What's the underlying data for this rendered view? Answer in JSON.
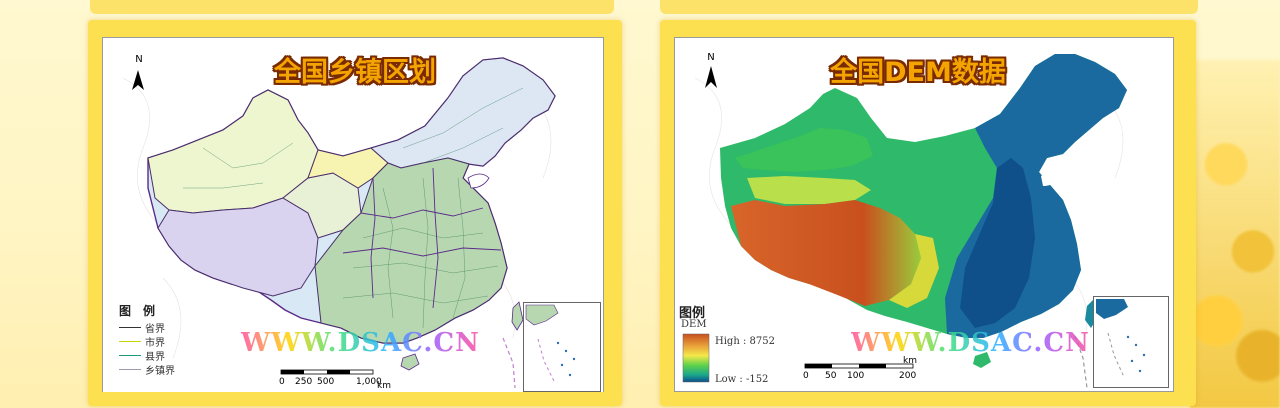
{
  "panels": [
    {
      "title": "全国乡镇区划",
      "north": "N",
      "watermark": "WWW.DSAC.CN",
      "legend_title": "图　例",
      "legend_items": [
        {
          "label": "省界",
          "color": "#333333"
        },
        {
          "label": "市界",
          "color": "#c9d400"
        },
        {
          "label": "县界",
          "color": "#1f9a7a"
        },
        {
          "label": "乡镇界",
          "color": "#9a9ab4"
        }
      ],
      "scale_ticks": [
        "0",
        "250",
        "500",
        "1,000"
      ],
      "scale_unit": "km"
    },
    {
      "title": "全国DEM数据",
      "north": "N",
      "watermark": "WWW.DSAC.CN",
      "legend_title": "图例",
      "legend_sub": "DEM",
      "high_label": "High : 8752",
      "low_label": "Low : -152",
      "ramp_colors": [
        "#c8501e",
        "#e9a23a",
        "#f4e84a",
        "#5fd24a",
        "#1aa88c",
        "#0d4e8c"
      ],
      "scale_ticks": [
        "0",
        "50",
        "100",
        "200"
      ],
      "scale_unit": "km"
    }
  ]
}
